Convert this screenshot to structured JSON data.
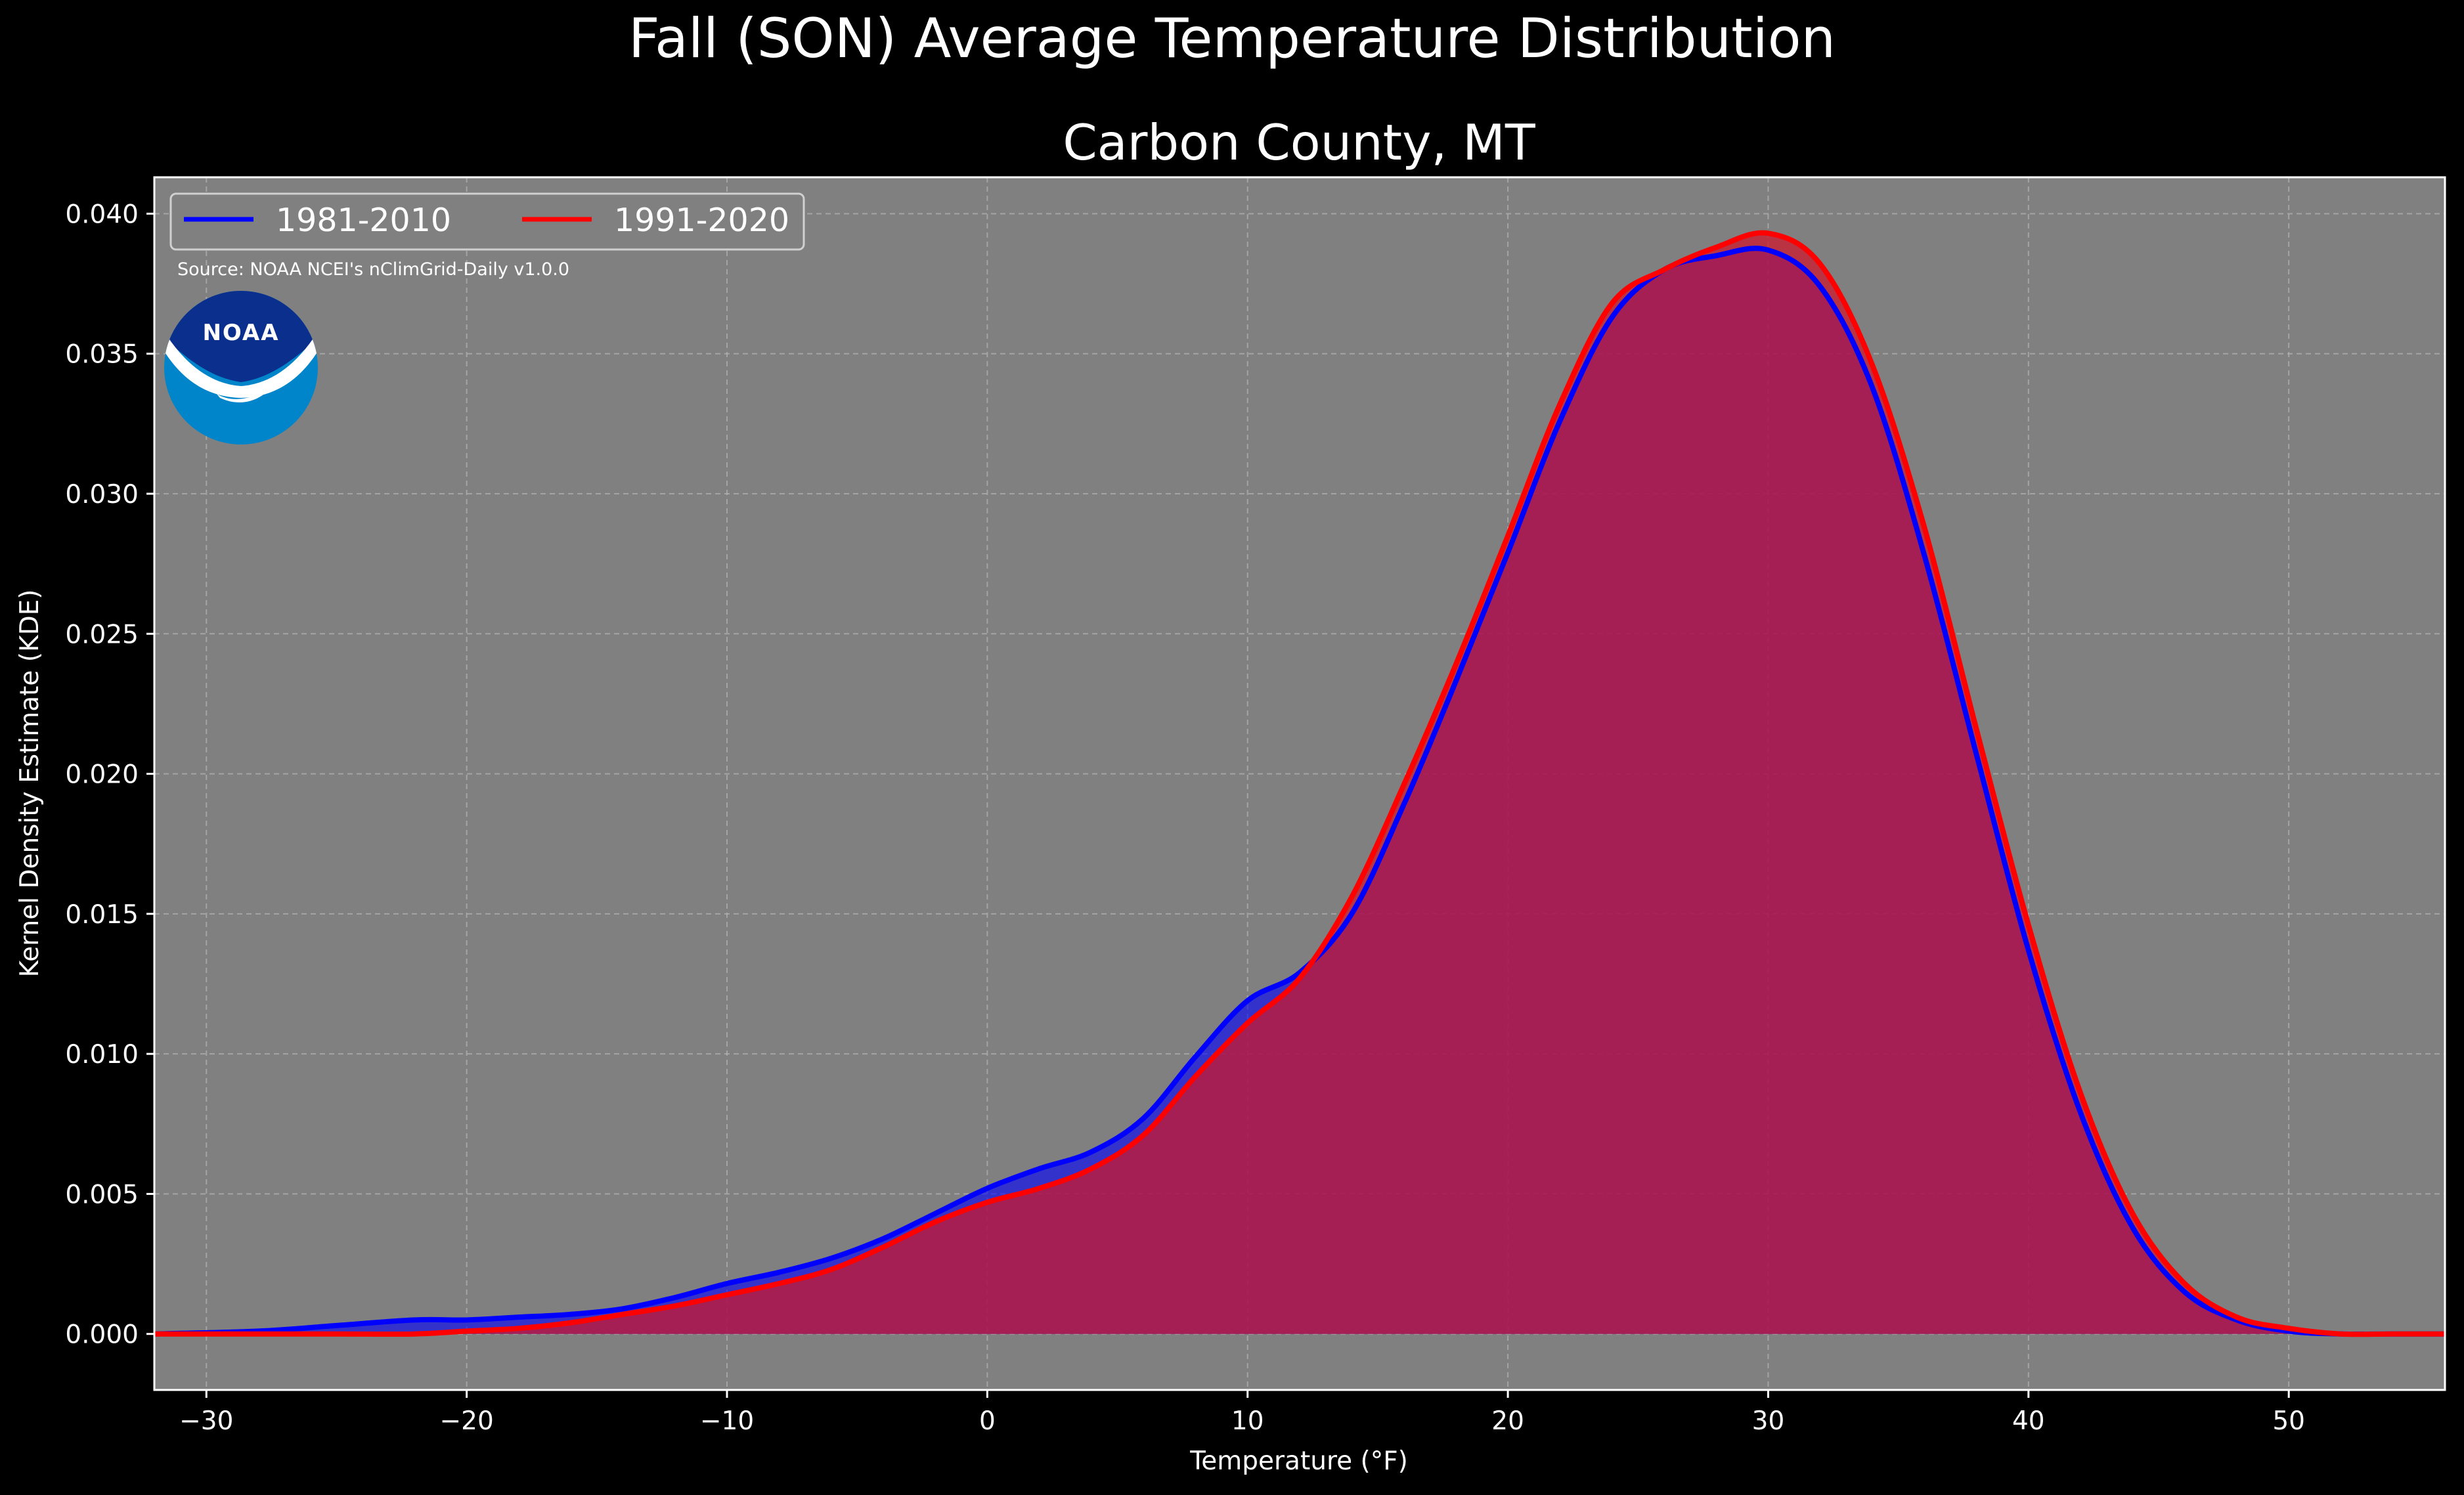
{
  "chart_data": {
    "type": "area",
    "suptitle": "Fall (SON) Average Temperature Distribution",
    "title": "Carbon County, MT",
    "xlabel": "Temperature (°F)",
    "ylabel": "Kernel Density Estimate (KDE)",
    "xlim": [
      -32,
      56
    ],
    "ylim": [
      -0.002,
      0.0413
    ],
    "xticks": [
      -30,
      -20,
      -10,
      0,
      10,
      20,
      30,
      40,
      50
    ],
    "yticks": [
      0.0,
      0.005,
      0.01,
      0.015,
      0.02,
      0.025,
      0.03,
      0.035,
      0.04
    ],
    "xtick_labels": [
      "−30",
      "−20",
      "−10",
      "0",
      "10",
      "20",
      "30",
      "40",
      "50"
    ],
    "ytick_labels": [
      "0.000",
      "0.005",
      "0.010",
      "0.015",
      "0.020",
      "0.025",
      "0.030",
      "0.035",
      "0.040"
    ],
    "grid": true,
    "legend_position": "top-left",
    "source_note": "Source: NOAA NCEI's nClimGrid-Daily v1.0.0",
    "logo_text": "NOAA",
    "colors": {
      "figure_bg": "#000000",
      "axes_bg": "#808080",
      "grid": "#b4b4b4",
      "overlap_fill": "#9c1e5c"
    },
    "series": [
      {
        "name": "1981-2010",
        "color": "#0000ff",
        "x": [
          -32,
          -28,
          -25,
          -22,
          -20,
          -18,
          -16,
          -14,
          -12,
          -10,
          -8,
          -6,
          -4,
          -2,
          0,
          2,
          4,
          6,
          8,
          10,
          12,
          14,
          16,
          18,
          20,
          22,
          24,
          26,
          28,
          30,
          32,
          34,
          36,
          38,
          40,
          42,
          44,
          46,
          48,
          50,
          52,
          54,
          56
        ],
        "values": [
          0.0,
          0.0001,
          0.0003,
          0.0005,
          0.0005,
          0.0006,
          0.0007,
          0.0009,
          0.0013,
          0.0018,
          0.0022,
          0.0027,
          0.0034,
          0.0043,
          0.0052,
          0.0059,
          0.0065,
          0.0077,
          0.0099,
          0.0119,
          0.0129,
          0.015,
          0.0189,
          0.0233,
          0.0279,
          0.0326,
          0.0363,
          0.038,
          0.0385,
          0.0387,
          0.0374,
          0.0338,
          0.0278,
          0.0207,
          0.0137,
          0.0079,
          0.0038,
          0.0015,
          0.0005,
          0.0001,
          0.0,
          0.0,
          0.0
        ]
      },
      {
        "name": "1991-2020",
        "color": "#ff0000",
        "x": [
          -32,
          -28,
          -25,
          -22,
          -20,
          -18,
          -16,
          -14,
          -12,
          -10,
          -8,
          -6,
          -4,
          -2,
          0,
          2,
          4,
          6,
          8,
          10,
          12,
          14,
          16,
          18,
          20,
          22,
          24,
          26,
          28,
          30,
          32,
          34,
          36,
          38,
          40,
          42,
          44,
          46,
          48,
          50,
          52,
          54,
          56
        ],
        "values": [
          0.0,
          0.0,
          0.0,
          0.0,
          0.0001,
          0.0002,
          0.0004,
          0.0007,
          0.001,
          0.0014,
          0.0018,
          0.0023,
          0.0031,
          0.004,
          0.0047,
          0.0052,
          0.0059,
          0.0071,
          0.0092,
          0.0111,
          0.0127,
          0.0156,
          0.0196,
          0.0239,
          0.0285,
          0.0332,
          0.0368,
          0.038,
          0.0388,
          0.0393,
          0.0382,
          0.0346,
          0.0288,
          0.0216,
          0.0146,
          0.0086,
          0.0043,
          0.0018,
          0.0006,
          0.0002,
          0.0,
          0.0,
          0.0
        ]
      }
    ]
  }
}
